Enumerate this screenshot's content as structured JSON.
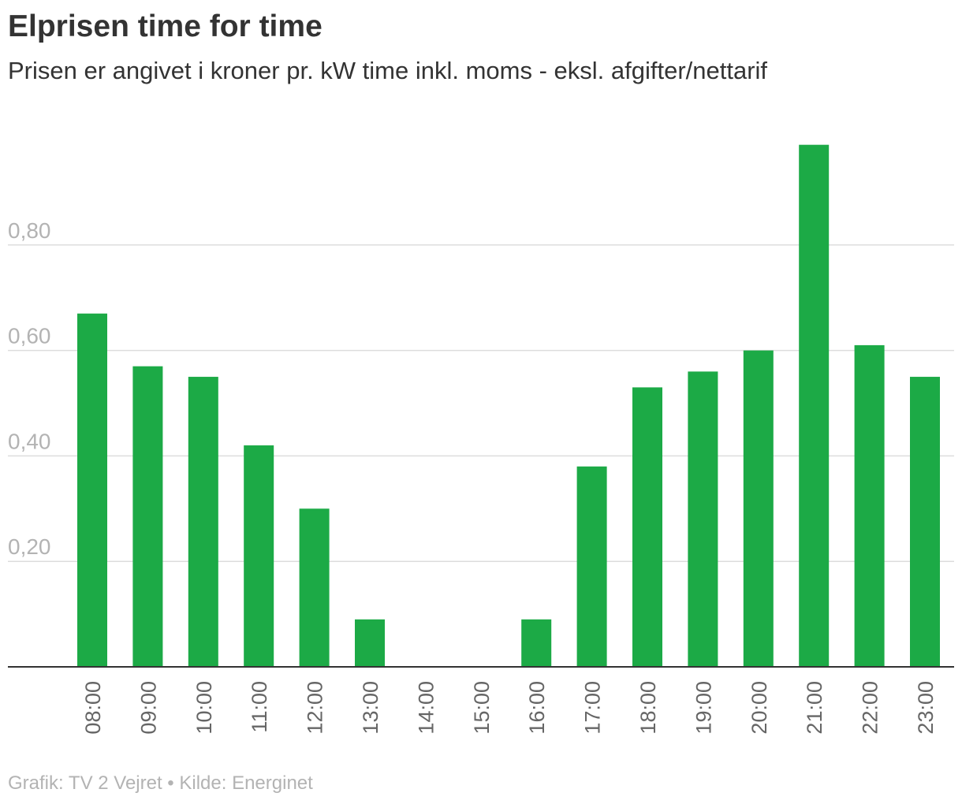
{
  "title": "Elprisen time for time",
  "subtitle": "Prisen er angivet i kroner pr. kW time inkl. moms - eksl. afgifter/nettarif",
  "source": "Grafik: TV 2 Vejret • Kilde: Energinet",
  "colors": {
    "bar": "#1caa46",
    "gridline": "#dddddd",
    "baseline": "#333333",
    "tick_text": "#b3b3b3",
    "category_text": "#666666",
    "title_text": "#333333"
  },
  "chart_data": {
    "type": "bar",
    "title": "Elprisen time for time",
    "subtitle": "Prisen er angivet i kroner pr. kW time inkl. moms - eksl. afgifter/nettarif",
    "xlabel": "",
    "ylabel": "",
    "ylim": [
      0,
      1.0
    ],
    "yticks": [
      0.2,
      0.4,
      0.6,
      0.8
    ],
    "ytick_labels": [
      "0,20",
      "0,40",
      "0,60",
      "0,80"
    ],
    "grid": true,
    "legend": "none",
    "categories": [
      "08:00",
      "09:00",
      "10:00",
      "11:00",
      "12:00",
      "13:00",
      "14:00",
      "15:00",
      "16:00",
      "17:00",
      "18:00",
      "19:00",
      "20:00",
      "21:00",
      "22:00",
      "23:00"
    ],
    "values": [
      0.67,
      0.57,
      0.55,
      0.42,
      0.3,
      0.09,
      0.0,
      0.0,
      0.09,
      0.38,
      0.53,
      0.56,
      0.6,
      0.99,
      0.61,
      0.55
    ]
  }
}
